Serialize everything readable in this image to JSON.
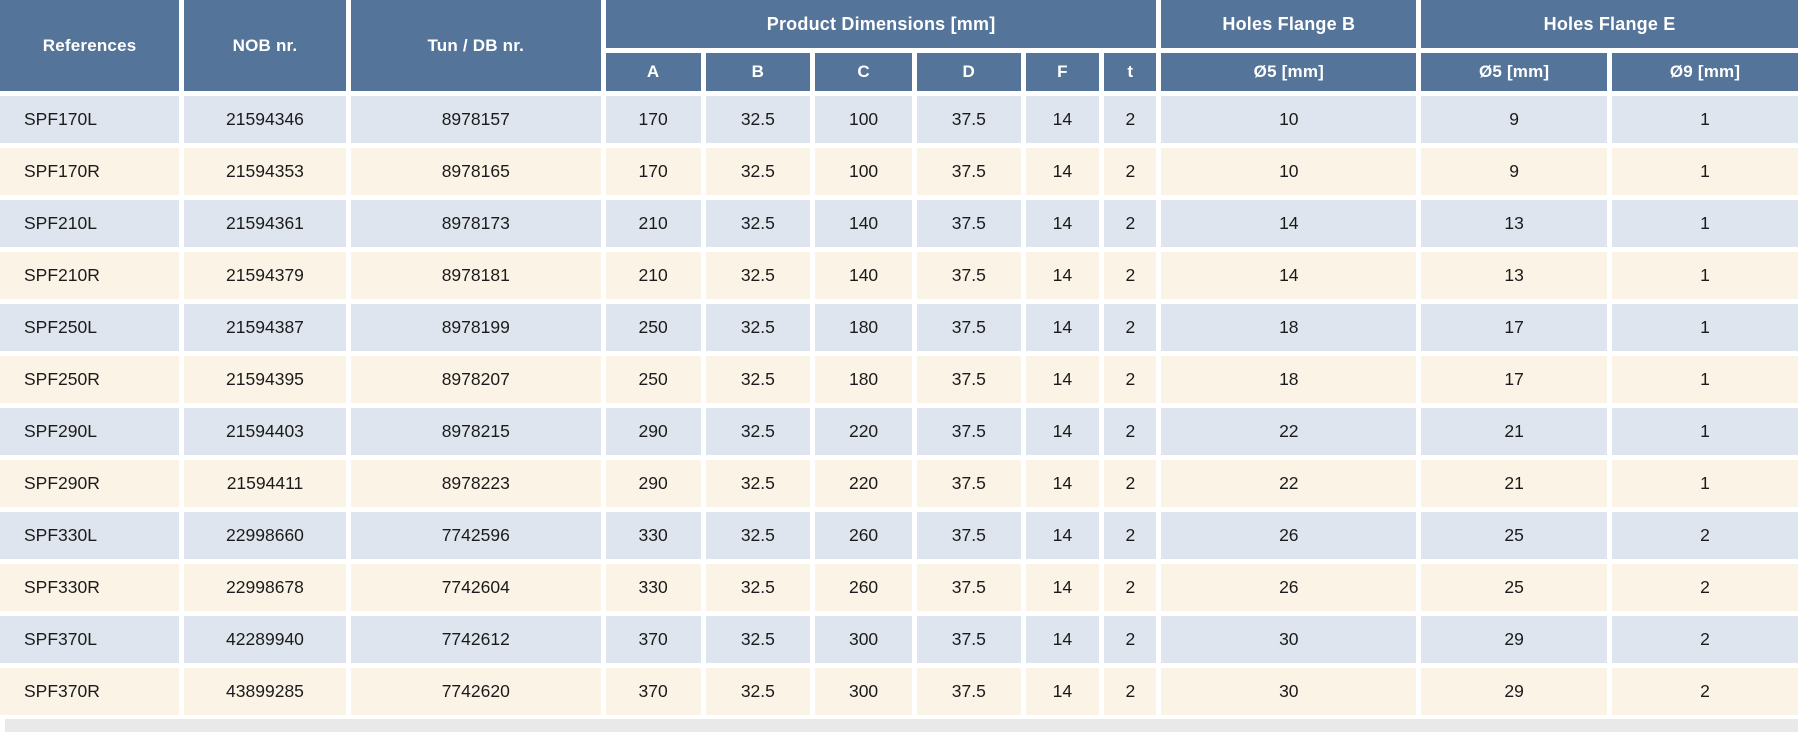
{
  "table": {
    "header": {
      "references": "References",
      "nob": "NOB nr.",
      "tun_db": "Tun / DB nr.",
      "product_dimensions": "Product Dimensions [mm]",
      "dimension_columns": [
        "A",
        "B",
        "C",
        "D",
        "F",
        "t"
      ],
      "holes_flange_b": "Holes Flange B",
      "flange_b_d5": "Ø5 [mm]",
      "holes_flange_e": "Holes Flange E",
      "flange_e_d5": "Ø5 [mm]",
      "flange_e_d9": "Ø9 [mm]"
    },
    "rows": [
      {
        "reference": "SPF170L",
        "nob_nr": "21594346",
        "tun_db_nr": "8978157",
        "A": "170",
        "B": "32.5",
        "C": "100",
        "D": "37.5",
        "F": "14",
        "t": "2",
        "flange_b_o5": "10",
        "flange_e_o5": "9",
        "flange_e_o9": "1"
      },
      {
        "reference": "SPF170R",
        "nob_nr": "21594353",
        "tun_db_nr": "8978165",
        "A": "170",
        "B": "32.5",
        "C": "100",
        "D": "37.5",
        "F": "14",
        "t": "2",
        "flange_b_o5": "10",
        "flange_e_o5": "9",
        "flange_e_o9": "1"
      },
      {
        "reference": "SPF210L",
        "nob_nr": "21594361",
        "tun_db_nr": "8978173",
        "A": "210",
        "B": "32.5",
        "C": "140",
        "D": "37.5",
        "F": "14",
        "t": "2",
        "flange_b_o5": "14",
        "flange_e_o5": "13",
        "flange_e_o9": "1"
      },
      {
        "reference": "SPF210R",
        "nob_nr": "21594379",
        "tun_db_nr": "8978181",
        "A": "210",
        "B": "32.5",
        "C": "140",
        "D": "37.5",
        "F": "14",
        "t": "2",
        "flange_b_o5": "14",
        "flange_e_o5": "13",
        "flange_e_o9": "1"
      },
      {
        "reference": "SPF250L",
        "nob_nr": "21594387",
        "tun_db_nr": "8978199",
        "A": "250",
        "B": "32.5",
        "C": "180",
        "D": "37.5",
        "F": "14",
        "t": "2",
        "flange_b_o5": "18",
        "flange_e_o5": "17",
        "flange_e_o9": "1"
      },
      {
        "reference": "SPF250R",
        "nob_nr": "21594395",
        "tun_db_nr": "8978207",
        "A": "250",
        "B": "32.5",
        "C": "180",
        "D": "37.5",
        "F": "14",
        "t": "2",
        "flange_b_o5": "18",
        "flange_e_o5": "17",
        "flange_e_o9": "1"
      },
      {
        "reference": "SPF290L",
        "nob_nr": "21594403",
        "tun_db_nr": "8978215",
        "A": "290",
        "B": "32.5",
        "C": "220",
        "D": "37.5",
        "F": "14",
        "t": "2",
        "flange_b_o5": "22",
        "flange_e_o5": "21",
        "flange_e_o9": "1"
      },
      {
        "reference": "SPF290R",
        "nob_nr": "21594411",
        "tun_db_nr": "8978223",
        "A": "290",
        "B": "32.5",
        "C": "220",
        "D": "37.5",
        "F": "14",
        "t": "2",
        "flange_b_o5": "22",
        "flange_e_o5": "21",
        "flange_e_o9": "1"
      },
      {
        "reference": "SPF330L",
        "nob_nr": "22998660",
        "tun_db_nr": "7742596",
        "A": "330",
        "B": "32.5",
        "C": "260",
        "D": "37.5",
        "F": "14",
        "t": "2",
        "flange_b_o5": "26",
        "flange_e_o5": "25",
        "flange_e_o9": "2"
      },
      {
        "reference": "SPF330R",
        "nob_nr": "22998678",
        "tun_db_nr": "7742604",
        "A": "330",
        "B": "32.5",
        "C": "260",
        "D": "37.5",
        "F": "14",
        "t": "2",
        "flange_b_o5": "26",
        "flange_e_o5": "25",
        "flange_e_o9": "2"
      },
      {
        "reference": "SPF370L",
        "nob_nr": "42289940",
        "tun_db_nr": "7742612",
        "A": "370",
        "B": "32.5",
        "C": "300",
        "D": "37.5",
        "F": "14",
        "t": "2",
        "flange_b_o5": "30",
        "flange_e_o5": "29",
        "flange_e_o9": "2"
      },
      {
        "reference": "SPF370R",
        "nob_nr": "43899285",
        "tun_db_nr": "7742620",
        "A": "370",
        "B": "32.5",
        "C": "300",
        "D": "37.5",
        "F": "14",
        "t": "2",
        "flange_b_o5": "30",
        "flange_e_o5": "29",
        "flange_e_o9": "2"
      }
    ]
  },
  "colors": {
    "header_blue": "#547499",
    "row_blue": "#dee5ee",
    "row_cream": "#fbf3e6",
    "gap_white": "#ffffff",
    "partial_row_gray": "#e9e9e9",
    "header_text": "#ffffff",
    "cell_text": "#1b1b1b"
  }
}
